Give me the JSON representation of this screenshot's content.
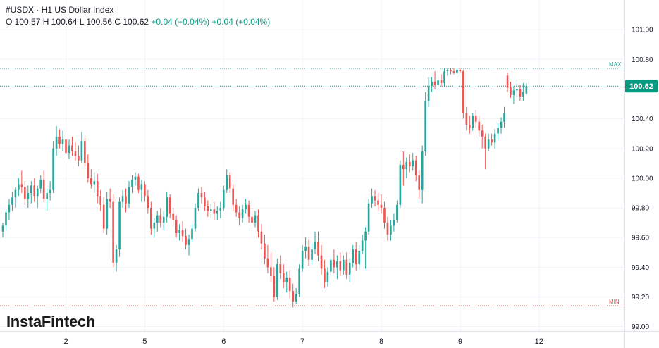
{
  "header": {
    "title": "#USDX · H1 US Dollar Index",
    "open": "O 100.57",
    "high": "H 100.64",
    "low": "L 100.56",
    "close": "C 100.62",
    "change1": "+0.04 (+0.04%)",
    "change2": "+0.04 (+0.04%)"
  },
  "logo": {
    "text": "InstaFintech"
  },
  "colors": {
    "up": "#26a69a",
    "down": "#ef5350",
    "grid": "#f0f3fa",
    "axis": "#e0e3eb",
    "text": "#131722"
  },
  "chart_data": {
    "type": "candlestick",
    "symbol": "#USDX",
    "timeframe": "H1",
    "ylim": [
      98.97,
      101.2
    ],
    "y_ticks": [
      "101.00",
      "100.80",
      "100.60",
      "100.40",
      "100.20",
      "100.00",
      "99.80",
      "99.60",
      "99.40",
      "99.20",
      "99.00"
    ],
    "x_ticks": [
      {
        "label": "2",
        "index": 20
      },
      {
        "label": "5",
        "index": 45
      },
      {
        "label": "6",
        "index": 70
      },
      {
        "label": "7",
        "index": 95
      },
      {
        "label": "8",
        "index": 120
      },
      {
        "label": "9",
        "index": 145
      },
      {
        "label": "12",
        "index": 170
      }
    ],
    "max_label": "MAX",
    "max_value": 100.74,
    "min_label": "MIN",
    "min_value": 99.14,
    "last_price": 100.62,
    "last_price_label": "100.62",
    "candles": [
      [
        99.64,
        99.7,
        99.6,
        99.68
      ],
      [
        99.68,
        99.79,
        99.65,
        99.77
      ],
      [
        99.77,
        99.86,
        99.72,
        99.82
      ],
      [
        99.82,
        99.91,
        99.78,
        99.87
      ],
      [
        99.87,
        99.94,
        99.8,
        99.92
      ],
      [
        99.92,
        100.0,
        99.88,
        99.96
      ],
      [
        99.96,
        100.05,
        99.9,
        99.94
      ],
      [
        99.94,
        99.98,
        99.82,
        99.86
      ],
      [
        99.86,
        99.95,
        99.8,
        99.9
      ],
      [
        99.9,
        99.98,
        99.83,
        99.95
      ],
      [
        99.95,
        100.0,
        99.84,
        99.88
      ],
      [
        99.88,
        99.95,
        99.8,
        99.93
      ],
      [
        99.93,
        100.02,
        99.9,
        99.99
      ],
      [
        99.99,
        100.05,
        99.84,
        99.86
      ],
      [
        99.86,
        99.93,
        99.78,
        99.9
      ],
      [
        99.9,
        99.98,
        99.85,
        99.92
      ],
      [
        99.92,
        100.25,
        99.9,
        100.2
      ],
      [
        100.2,
        100.35,
        100.15,
        100.28
      ],
      [
        100.28,
        100.33,
        100.2,
        100.23
      ],
      [
        100.23,
        100.32,
        100.18,
        100.26
      ],
      [
        100.26,
        100.3,
        100.12,
        100.17
      ],
      [
        100.17,
        100.26,
        100.13,
        100.22
      ],
      [
        100.22,
        100.28,
        100.15,
        100.18
      ],
      [
        100.18,
        100.24,
        100.12,
        100.15
      ],
      [
        100.15,
        100.22,
        100.08,
        100.12
      ],
      [
        100.12,
        100.31,
        100.1,
        100.25
      ],
      [
        100.25,
        100.27,
        100.08,
        100.1
      ],
      [
        100.1,
        100.16,
        99.97,
        100.0
      ],
      [
        100.0,
        100.06,
        99.93,
        99.96
      ],
      [
        99.96,
        100.04,
        99.9,
        99.98
      ],
      [
        99.98,
        100.03,
        99.83,
        99.88
      ],
      [
        99.88,
        99.92,
        99.78,
        99.82
      ],
      [
        99.82,
        99.87,
        99.63,
        99.66
      ],
      [
        99.66,
        99.91,
        99.62,
        99.86
      ],
      [
        99.86,
        99.93,
        99.8,
        99.84
      ],
      [
        99.84,
        99.89,
        99.4,
        99.43
      ],
      [
        99.43,
        99.55,
        99.37,
        99.52
      ],
      [
        99.52,
        99.87,
        99.47,
        99.84
      ],
      [
        99.84,
        99.92,
        99.8,
        99.88
      ],
      [
        99.88,
        99.93,
        99.77,
        99.83
      ],
      [
        99.83,
        99.98,
        99.8,
        99.94
      ],
      [
        99.94,
        100.02,
        99.9,
        99.99
      ],
      [
        99.99,
        100.04,
        99.95,
        100.01
      ],
      [
        100.01,
        100.03,
        99.9,
        99.92
      ],
      [
        99.92,
        99.99,
        99.84,
        99.96
      ],
      [
        99.96,
        99.98,
        99.84,
        99.88
      ],
      [
        99.88,
        99.92,
        99.76,
        99.8
      ],
      [
        99.8,
        99.84,
        99.62,
        99.66
      ],
      [
        99.66,
        99.73,
        99.6,
        99.7
      ],
      [
        99.7,
        99.78,
        99.64,
        99.75
      ],
      [
        99.75,
        99.8,
        99.67,
        99.7
      ],
      [
        99.7,
        99.78,
        99.65,
        99.74
      ],
      [
        99.74,
        99.91,
        99.7,
        99.87
      ],
      [
        99.87,
        99.89,
        99.73,
        99.76
      ],
      [
        99.76,
        99.8,
        99.68,
        99.72
      ],
      [
        99.72,
        99.75,
        99.6,
        99.63
      ],
      [
        99.63,
        99.69,
        99.58,
        99.65
      ],
      [
        99.65,
        99.71,
        99.57,
        99.61
      ],
      [
        99.61,
        99.66,
        99.52,
        99.55
      ],
      [
        99.55,
        99.62,
        99.48,
        99.59
      ],
      [
        99.59,
        99.69,
        99.57,
        99.66
      ],
      [
        99.66,
        99.83,
        99.64,
        99.8
      ],
      [
        99.8,
        99.93,
        99.78,
        99.9
      ],
      [
        99.9,
        99.94,
        99.83,
        99.87
      ],
      [
        99.87,
        99.91,
        99.78,
        99.81
      ],
      [
        99.81,
        99.85,
        99.74,
        99.78
      ],
      [
        99.78,
        99.83,
        99.73,
        99.79
      ],
      [
        99.79,
        99.84,
        99.72,
        99.76
      ],
      [
        99.76,
        99.81,
        99.72,
        99.78
      ],
      [
        99.78,
        99.84,
        99.73,
        99.8
      ],
      [
        99.8,
        99.95,
        99.78,
        99.92
      ],
      [
        99.92,
        100.06,
        99.9,
        100.02
      ],
      [
        100.02,
        100.04,
        99.9,
        99.93
      ],
      [
        99.93,
        99.96,
        99.78,
        99.82
      ],
      [
        99.82,
        99.86,
        99.74,
        99.77
      ],
      [
        99.77,
        99.81,
        99.68,
        99.73
      ],
      [
        99.73,
        99.82,
        99.7,
        99.79
      ],
      [
        99.79,
        99.86,
        99.76,
        99.82
      ],
      [
        99.82,
        99.85,
        99.7,
        99.74
      ],
      [
        99.74,
        99.8,
        99.66,
        99.7
      ],
      [
        99.7,
        99.78,
        99.67,
        99.75
      ],
      [
        99.75,
        99.79,
        99.6,
        99.64
      ],
      [
        99.64,
        99.69,
        99.52,
        99.56
      ],
      [
        99.56,
        99.62,
        99.42,
        99.46
      ],
      [
        99.46,
        99.55,
        99.36,
        99.4
      ],
      [
        99.4,
        99.5,
        99.3,
        99.34
      ],
      [
        99.34,
        99.4,
        99.17,
        99.2
      ],
      [
        99.2,
        99.46,
        99.18,
        99.42
      ],
      [
        99.42,
        99.48,
        99.32,
        99.36
      ],
      [
        99.36,
        99.42,
        99.26,
        99.3
      ],
      [
        99.3,
        99.37,
        99.23,
        99.33
      ],
      [
        99.33,
        99.38,
        99.19,
        99.24
      ],
      [
        99.24,
        99.29,
        99.13,
        99.17
      ],
      [
        99.17,
        99.26,
        99.15,
        99.22
      ],
      [
        99.22,
        99.42,
        99.2,
        99.39
      ],
      [
        99.39,
        99.55,
        99.37,
        99.51
      ],
      [
        99.51,
        99.6,
        99.46,
        99.54
      ],
      [
        99.54,
        99.59,
        99.41,
        99.45
      ],
      [
        99.45,
        99.56,
        99.42,
        99.52
      ],
      [
        99.52,
        99.64,
        99.49,
        99.57
      ],
      [
        99.57,
        99.64,
        99.44,
        99.48
      ],
      [
        99.48,
        99.55,
        99.35,
        99.39
      ],
      [
        99.39,
        99.45,
        99.26,
        99.3
      ],
      [
        99.3,
        99.4,
        99.27,
        99.37
      ],
      [
        99.37,
        99.48,
        99.34,
        99.45
      ],
      [
        99.45,
        99.52,
        99.36,
        99.4
      ],
      [
        99.4,
        99.48,
        99.32,
        99.44
      ],
      [
        99.44,
        99.5,
        99.34,
        99.38
      ],
      [
        99.38,
        99.48,
        99.35,
        99.45
      ],
      [
        99.45,
        99.5,
        99.32,
        99.35
      ],
      [
        99.35,
        99.46,
        99.3,
        99.43
      ],
      [
        99.43,
        99.55,
        99.4,
        99.52
      ],
      [
        99.52,
        99.57,
        99.38,
        99.42
      ],
      [
        99.42,
        99.55,
        99.38,
        99.51
      ],
      [
        99.51,
        99.62,
        99.49,
        99.58
      ],
      [
        99.58,
        99.67,
        99.39,
        99.64
      ],
      [
        99.64,
        99.86,
        99.62,
        99.83
      ],
      [
        99.83,
        99.93,
        99.8,
        99.88
      ],
      [
        99.88,
        99.92,
        99.81,
        99.85
      ],
      [
        99.85,
        99.9,
        99.78,
        99.82
      ],
      [
        99.82,
        99.89,
        99.76,
        99.8
      ],
      [
        99.8,
        99.84,
        99.66,
        99.7
      ],
      [
        99.7,
        99.74,
        99.58,
        99.62
      ],
      [
        99.62,
        99.72,
        99.58,
        99.68
      ],
      [
        99.68,
        99.76,
        99.64,
        99.72
      ],
      [
        99.72,
        99.85,
        99.7,
        99.82
      ],
      [
        99.82,
        100.12,
        99.8,
        100.09
      ],
      [
        100.09,
        100.18,
        99.95,
        100.06
      ],
      [
        100.06,
        100.14,
        100.0,
        100.11
      ],
      [
        100.11,
        100.16,
        100.04,
        100.08
      ],
      [
        100.08,
        100.17,
        100.05,
        100.12
      ],
      [
        100.12,
        100.15,
        99.98,
        100.02
      ],
      [
        100.02,
        100.05,
        99.86,
        99.92
      ],
      [
        99.92,
        100.22,
        99.83,
        100.18
      ],
      [
        100.18,
        100.58,
        100.15,
        100.52
      ],
      [
        100.52,
        100.68,
        100.48,
        100.62
      ],
      [
        100.62,
        100.68,
        100.58,
        100.65
      ],
      [
        100.65,
        100.72,
        100.6,
        100.63
      ],
      [
        100.63,
        100.68,
        100.6,
        100.66
      ],
      [
        100.66,
        100.7,
        100.62,
        100.64
      ],
      [
        100.64,
        100.74,
        100.62,
        100.72
      ],
      [
        100.72,
        100.74,
        100.69,
        100.73
      ],
      [
        100.73,
        100.74,
        100.7,
        100.72
      ],
      [
        100.72,
        100.74,
        100.7,
        100.71
      ],
      [
        100.71,
        100.74,
        100.7,
        100.73
      ],
      [
        100.73,
        100.74,
        100.71,
        100.72
      ],
      [
        100.72,
        100.73,
        100.4,
        100.44
      ],
      [
        100.44,
        100.48,
        100.32,
        100.36
      ],
      [
        100.36,
        100.42,
        100.3,
        100.34
      ],
      [
        100.34,
        100.44,
        100.32,
        100.42
      ],
      [
        100.42,
        100.46,
        100.34,
        100.38
      ],
      [
        100.38,
        100.42,
        100.28,
        100.32
      ],
      [
        100.32,
        100.36,
        100.2,
        100.28
      ],
      [
        100.28,
        100.3,
        100.06,
        100.2
      ],
      [
        100.2,
        100.3,
        100.18,
        100.26
      ],
      [
        100.26,
        100.3,
        100.22,
        100.24
      ],
      [
        100.24,
        100.33,
        100.2,
        100.3
      ],
      [
        100.3,
        100.37,
        100.26,
        100.34
      ],
      [
        100.34,
        100.41,
        100.3,
        100.38
      ],
      [
        100.38,
        100.48,
        100.34,
        100.44
      ],
      [
        100.69,
        100.71,
        100.58,
        100.61
      ],
      [
        100.61,
        100.65,
        100.54,
        100.56
      ],
      [
        100.56,
        100.62,
        100.5,
        100.59
      ],
      [
        100.59,
        100.66,
        100.53,
        100.6
      ],
      [
        100.6,
        100.63,
        100.52,
        100.55
      ],
      [
        100.55,
        100.64,
        100.52,
        100.58
      ],
      [
        100.57,
        100.64,
        100.56,
        100.62
      ]
    ]
  }
}
